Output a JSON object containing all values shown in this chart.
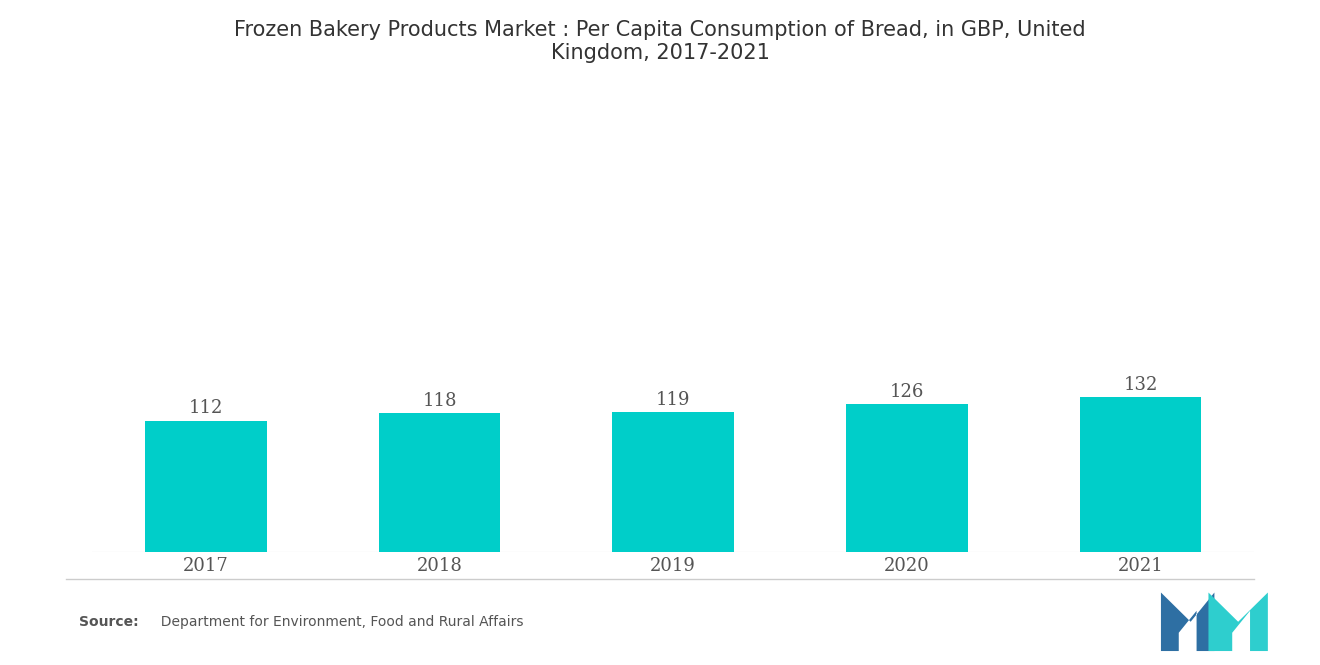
{
  "title": "Frozen Bakery Products Market : Per Capita Consumption of Bread, in GBP, United\nKingdom, 2017-2021",
  "categories": [
    "2017",
    "2018",
    "2019",
    "2020",
    "2021"
  ],
  "values": [
    112,
    118,
    119,
    126,
    132
  ],
  "bar_color": "#00CEC9",
  "background_color": "#ffffff",
  "title_fontsize": 15,
  "label_fontsize": 13,
  "value_fontsize": 13,
  "source_bold": "Source:",
  "source_rest": "  Department for Environment, Food and Rural Affairs",
  "ylim": [
    0,
    340
  ],
  "bar_width": 0.52,
  "logo_left_color": "#2e6fa3",
  "logo_right_color": "#2ecece"
}
